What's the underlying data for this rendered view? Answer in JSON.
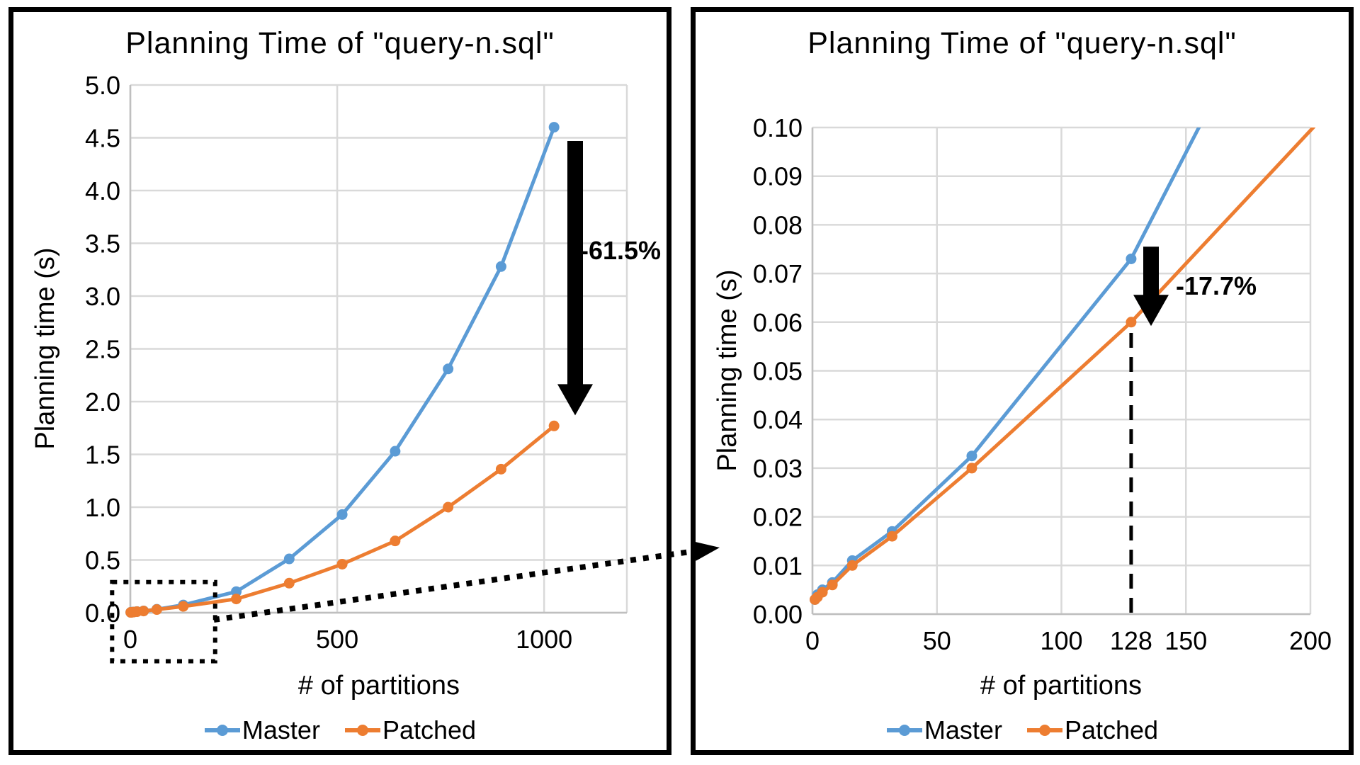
{
  "colors": {
    "master": "#5B9BD5",
    "patched": "#ED7D31",
    "gridline": "#D9D9D9",
    "axis_line": "#BFBFBF",
    "annotation": "#000000",
    "text": "#000000",
    "panel_border": "#000000"
  },
  "chart_data": [
    {
      "id": "overview",
      "type": "line",
      "title": "Planning Time of \"query-n.sql\"",
      "xlabel": "# of partitions",
      "ylabel": "Planning time (s)",
      "xlim": [
        0,
        1200
      ],
      "ylim": [
        0,
        5
      ],
      "grid": true,
      "legend_position": "bottom",
      "xticks": [
        {
          "v": 0,
          "label": "0",
          "grid": true
        },
        {
          "v": 500,
          "label": "500",
          "grid": true
        },
        {
          "v": 1000,
          "label": "1000",
          "grid": true
        },
        {
          "v": 1200,
          "label": "",
          "grid": true
        }
      ],
      "yticks": [
        {
          "v": 0.0,
          "label": "0.0"
        },
        {
          "v": 0.5,
          "label": "0.5"
        },
        {
          "v": 1.0,
          "label": "1.0"
        },
        {
          "v": 1.5,
          "label": "1.5"
        },
        {
          "v": 2.0,
          "label": "2.0"
        },
        {
          "v": 2.5,
          "label": "2.5"
        },
        {
          "v": 3.0,
          "label": "3.0"
        },
        {
          "v": 3.5,
          "label": "3.5"
        },
        {
          "v": 4.0,
          "label": "4.0"
        },
        {
          "v": 4.5,
          "label": "4.5"
        },
        {
          "v": 5.0,
          "label": "5.0"
        }
      ],
      "series": [
        {
          "name": "Master",
          "color_key": "master",
          "points": [
            [
              1,
              0.003
            ],
            [
              2,
              0.004
            ],
            [
              4,
              0.005
            ],
            [
              8,
              0.0065
            ],
            [
              16,
              0.011
            ],
            [
              32,
              0.017
            ],
            [
              64,
              0.0325
            ],
            [
              128,
              0.073
            ],
            [
              256,
              0.2
            ],
            [
              384,
              0.51
            ],
            [
              512,
              0.93
            ],
            [
              640,
              1.53
            ],
            [
              768,
              2.31
            ],
            [
              896,
              3.28
            ],
            [
              1024,
              4.6
            ]
          ]
        },
        {
          "name": "Patched",
          "color_key": "patched",
          "points": [
            [
              1,
              0.003
            ],
            [
              2,
              0.0035
            ],
            [
              4,
              0.0045
            ],
            [
              8,
              0.006
            ],
            [
              16,
              0.01
            ],
            [
              32,
              0.016
            ],
            [
              64,
              0.03
            ],
            [
              128,
              0.06
            ],
            [
              256,
              0.13
            ],
            [
              384,
              0.28
            ],
            [
              512,
              0.46
            ],
            [
              640,
              0.68
            ],
            [
              768,
              1.0
            ],
            [
              896,
              1.36
            ],
            [
              1024,
              1.77
            ]
          ]
        }
      ],
      "annotations": {
        "drop_arrow": {
          "x": 1075,
          "from": 4.47,
          "to": 1.87,
          "label": "-61.5%"
        },
        "zoom_box": {
          "x0": -44,
          "x1": 205,
          "y0": -0.46,
          "y1": 0.29
        }
      }
    },
    {
      "id": "zoomed",
      "type": "line",
      "title": "Planning Time of \"query-n.sql\"",
      "xlabel": "# of partitions",
      "ylabel": "Planning time (s)",
      "xlim": [
        0,
        200
      ],
      "ylim": [
        0,
        0.1
      ],
      "grid": true,
      "legend_position": "bottom",
      "xticks": [
        {
          "v": 0,
          "label": "0",
          "grid": true
        },
        {
          "v": 50,
          "label": "50",
          "grid": true
        },
        {
          "v": 100,
          "label": "100",
          "grid": true
        },
        {
          "v": 128,
          "label": "128",
          "grid": false
        },
        {
          "v": 150,
          "label": "150",
          "grid": true
        },
        {
          "v": 200,
          "label": "200",
          "grid": true
        }
      ],
      "yticks": [
        {
          "v": 0.0,
          "label": "0.00"
        },
        {
          "v": 0.01,
          "label": "0.01"
        },
        {
          "v": 0.02,
          "label": "0.02"
        },
        {
          "v": 0.03,
          "label": "0.03"
        },
        {
          "v": 0.04,
          "label": "0.04"
        },
        {
          "v": 0.05,
          "label": "0.05"
        },
        {
          "v": 0.06,
          "label": "0.06"
        },
        {
          "v": 0.07,
          "label": "0.07"
        },
        {
          "v": 0.08,
          "label": "0.08"
        },
        {
          "v": 0.09,
          "label": "0.09"
        },
        {
          "v": 0.1,
          "label": "0.10"
        }
      ],
      "series": [
        {
          "name": "Master",
          "color_key": "master",
          "points": [
            [
              1,
              0.003
            ],
            [
              2,
              0.004
            ],
            [
              4,
              0.005
            ],
            [
              8,
              0.0065
            ],
            [
              16,
              0.011
            ],
            [
              32,
              0.017
            ],
            [
              64,
              0.0325
            ],
            [
              128,
              0.073
            ],
            [
              256,
              0.2
            ]
          ]
        },
        {
          "name": "Patched",
          "color_key": "patched",
          "points": [
            [
              1,
              0.003
            ],
            [
              2,
              0.0035
            ],
            [
              4,
              0.0045
            ],
            [
              8,
              0.006
            ],
            [
              16,
              0.01
            ],
            [
              32,
              0.016
            ],
            [
              64,
              0.03
            ],
            [
              128,
              0.06
            ],
            [
              256,
              0.13
            ]
          ]
        }
      ],
      "annotations": {
        "drop_arrow": {
          "x": 136,
          "from": 0.0755,
          "to": 0.0592,
          "label": "-17.7%"
        },
        "ref_vline": {
          "x": 128,
          "from": 0,
          "to": 0.0585
        }
      }
    }
  ]
}
